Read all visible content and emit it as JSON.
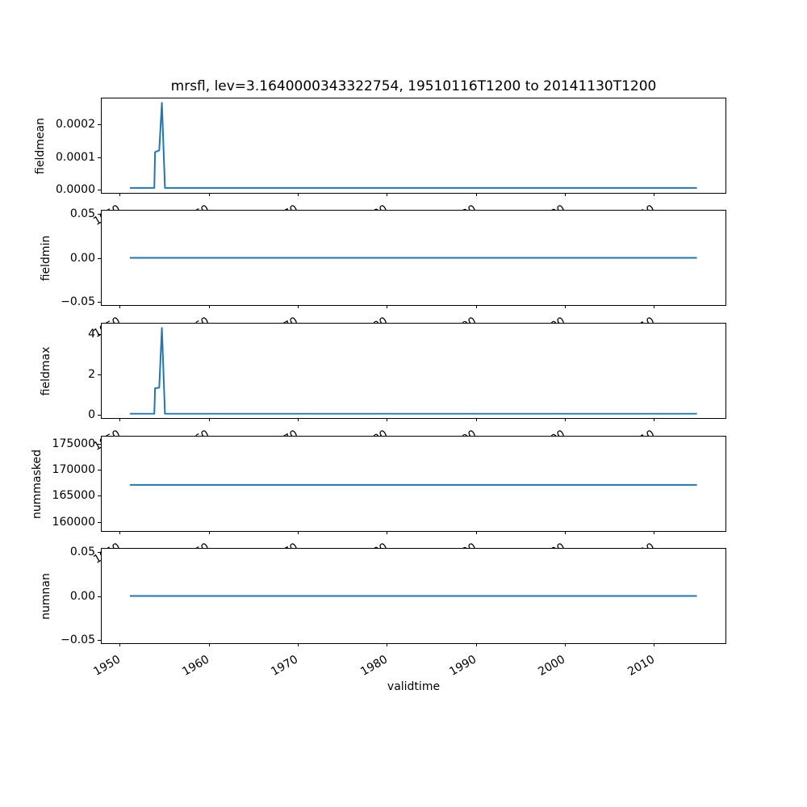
{
  "chart_data": {
    "type": "line",
    "title": "mrsfl, lev=3.1640000343322754, 19510116T1200 to 20141130T1200",
    "xlabel": "validtime",
    "line_color": "#1f77b4",
    "grid": false,
    "legend": false,
    "x": {
      "xlim": [
        1947.87,
        2018.14
      ],
      "ticks": [
        1950,
        1960,
        1970,
        1980,
        1990,
        2000,
        2010
      ],
      "tick_labels": [
        "1950",
        "1960",
        "1970",
        "1980",
        "1990",
        "2000",
        "2010"
      ],
      "tick_rotation_deg": 30
    },
    "subplots": [
      {
        "ylabel": "fieldmean",
        "ylim": [
          -1.35e-05,
          0.0002835
        ],
        "yticks": [
          {
            "value": 0.0,
            "label": "0.0000"
          },
          {
            "value": 0.0001,
            "label": "0.0001"
          },
          {
            "value": 0.0002,
            "label": "0.0002"
          }
        ],
        "points": [
          [
            1951.04,
            2e-06
          ],
          [
            1953.8,
            2e-06
          ],
          [
            1953.88,
            0.000115
          ],
          [
            1954.35,
            0.00012
          ],
          [
            1954.65,
            0.00027
          ],
          [
            1955.0,
            2e-06
          ],
          [
            2014.92,
            2e-06
          ]
        ]
      },
      {
        "ylabel": "fieldmin",
        "ylim": [
          -0.055,
          0.055
        ],
        "yticks": [
          {
            "value": 0.05,
            "label": "0.05"
          },
          {
            "value": 0.0,
            "label": "0.00"
          },
          {
            "value": -0.05,
            "label": "−0.05"
          }
        ],
        "points": [
          [
            1951.04,
            0.0
          ],
          [
            2014.92,
            0.0
          ]
        ]
      },
      {
        "ylabel": "fieldmax",
        "ylim": [
          -0.1955,
          4.5455
        ],
        "yticks": [
          {
            "value": 0,
            "label": "0"
          },
          {
            "value": 2,
            "label": "2"
          },
          {
            "value": 4,
            "label": "4"
          }
        ],
        "points": [
          [
            1951.04,
            0.02
          ],
          [
            1953.8,
            0.02
          ],
          [
            1953.88,
            1.3
          ],
          [
            1954.35,
            1.33
          ],
          [
            1954.65,
            4.33
          ],
          [
            1955.0,
            0.02
          ],
          [
            2014.92,
            0.02
          ]
        ]
      },
      {
        "ylabel": "nummasked",
        "ylim": [
          158100,
          176520
        ],
        "yticks": [
          {
            "value": 160000,
            "label": "160000"
          },
          {
            "value": 165000,
            "label": "165000"
          },
          {
            "value": 170000,
            "label": "170000"
          },
          {
            "value": 175000,
            "label": "175000"
          }
        ],
        "points": [
          [
            1951.04,
            167100
          ],
          [
            2014.92,
            167100
          ]
        ]
      },
      {
        "ylabel": "numnan",
        "ylim": [
          -0.055,
          0.055
        ],
        "yticks": [
          {
            "value": 0.05,
            "label": "0.05"
          },
          {
            "value": 0.0,
            "label": "0.00"
          },
          {
            "value": -0.05,
            "label": "−0.05"
          }
        ],
        "points": [
          [
            1951.04,
            0.0
          ],
          [
            2014.92,
            0.0
          ]
        ]
      }
    ]
  }
}
